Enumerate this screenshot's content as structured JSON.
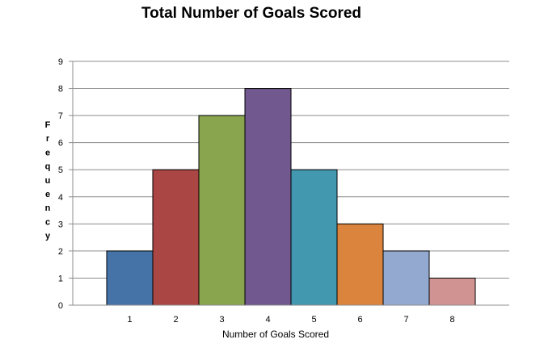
{
  "chart_data": {
    "type": "bar",
    "title": "Total Number of Goals Scored",
    "xlabel": "Number of Goals Scored",
    "ylabel": "Frequency",
    "categories": [
      "1",
      "2",
      "3",
      "4",
      "5",
      "6",
      "7",
      "8"
    ],
    "values": [
      2,
      5,
      7,
      8,
      5,
      3,
      2,
      1
    ],
    "colors": [
      "#4572A7",
      "#AA4643",
      "#89A54E",
      "#71588F",
      "#4198AF",
      "#DB843D",
      "#93A9CF",
      "#D19392"
    ],
    "ylim": [
      0,
      9
    ],
    "yticks": [
      "0",
      "1",
      "2",
      "3",
      "4",
      "5",
      "6",
      "7",
      "8",
      "9"
    ],
    "grid": true,
    "legend": "none"
  }
}
